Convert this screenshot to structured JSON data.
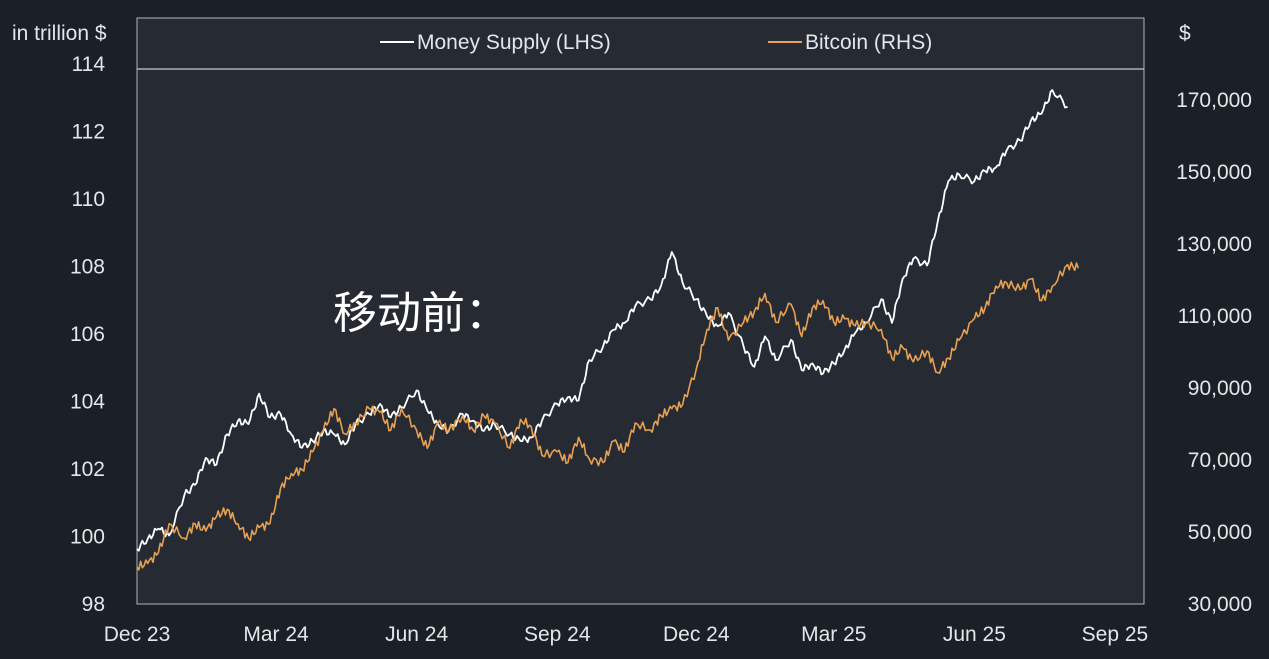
{
  "chart_data": {
    "type": "line",
    "left_axis": {
      "unit_label": "in trillion $",
      "ylim": [
        98,
        114
      ],
      "ticks": [
        "98",
        "100",
        "102",
        "104",
        "106",
        "108",
        "110",
        "112",
        "114"
      ]
    },
    "right_axis": {
      "unit_label": "$",
      "ylim": [
        30000,
        180000
      ],
      "ticks": [
        "30,000",
        "50,000",
        "70,000",
        "90,000",
        "110,000",
        "130,000",
        "150,000",
        "170,000"
      ]
    },
    "x_axis": {
      "xlim": [
        "2023-12-01",
        "2025-09-20"
      ],
      "ticks": [
        {
          "date": "2023-12-01",
          "label": "Dec 23"
        },
        {
          "date": "2024-03-01",
          "label": "Mar 24"
        },
        {
          "date": "2024-06-01",
          "label": "Jun 24"
        },
        {
          "date": "2024-09-01",
          "label": "Sep 24"
        },
        {
          "date": "2024-12-01",
          "label": "Dec 24"
        },
        {
          "date": "2025-03-01",
          "label": "Mar 25"
        },
        {
          "date": "2025-06-01",
          "label": "Jun 25"
        },
        {
          "date": "2025-09-01",
          "label": "Sep 25"
        }
      ]
    },
    "legend_position": "top",
    "grid": false,
    "annotation": "移动前：",
    "series": [
      {
        "name": "Money Supply (LHS)",
        "axis": "left",
        "color": "#ffffff",
        "points": [
          [
            "2023-12-01",
            99.6
          ],
          [
            "2023-12-08",
            99.9
          ],
          [
            "2023-12-15",
            100.2
          ],
          [
            "2023-12-22",
            100.0
          ],
          [
            "2024-01-01",
            101.2
          ],
          [
            "2024-01-08",
            101.5
          ],
          [
            "2024-01-15",
            102.3
          ],
          [
            "2024-01-22",
            102.1
          ],
          [
            "2024-01-29",
            103.0
          ],
          [
            "2024-02-05",
            103.4
          ],
          [
            "2024-02-12",
            103.3
          ],
          [
            "2024-02-19",
            104.2
          ],
          [
            "2024-02-26",
            103.5
          ],
          [
            "2024-03-04",
            103.6
          ],
          [
            "2024-03-11",
            103.0
          ],
          [
            "2024-03-18",
            102.6
          ],
          [
            "2024-03-25",
            102.8
          ],
          [
            "2024-04-01",
            103.1
          ],
          [
            "2024-04-08",
            103.0
          ],
          [
            "2024-04-15",
            102.7
          ],
          [
            "2024-04-22",
            103.3
          ],
          [
            "2024-05-01",
            103.6
          ],
          [
            "2024-05-08",
            103.9
          ],
          [
            "2024-05-15",
            103.5
          ],
          [
            "2024-05-22",
            103.8
          ],
          [
            "2024-06-01",
            104.3
          ],
          [
            "2024-06-08",
            103.7
          ],
          [
            "2024-06-15",
            103.3
          ],
          [
            "2024-06-22",
            103.1
          ],
          [
            "2024-07-01",
            103.6
          ],
          [
            "2024-07-08",
            103.4
          ],
          [
            "2024-07-15",
            103.1
          ],
          [
            "2024-07-22",
            103.3
          ],
          [
            "2024-08-01",
            103.0
          ],
          [
            "2024-08-08",
            102.8
          ],
          [
            "2024-08-15",
            102.9
          ],
          [
            "2024-08-22",
            103.4
          ],
          [
            "2024-09-01",
            103.9
          ],
          [
            "2024-09-08",
            104.1
          ],
          [
            "2024-09-15",
            104.0
          ],
          [
            "2024-09-22",
            105.2
          ],
          [
            "2024-10-01",
            105.6
          ],
          [
            "2024-10-08",
            106.1
          ],
          [
            "2024-10-15",
            106.3
          ],
          [
            "2024-10-22",
            106.8
          ],
          [
            "2024-11-01",
            107.0
          ],
          [
            "2024-11-08",
            107.4
          ],
          [
            "2024-11-15",
            108.4
          ],
          [
            "2024-11-22",
            107.5
          ],
          [
            "2024-12-01",
            107.0
          ],
          [
            "2024-12-08",
            106.5
          ],
          [
            "2024-12-15",
            106.2
          ],
          [
            "2024-12-22",
            106.6
          ],
          [
            "2025-01-01",
            105.6
          ],
          [
            "2025-01-08",
            105.0
          ],
          [
            "2025-01-15",
            105.9
          ],
          [
            "2025-01-22",
            105.2
          ],
          [
            "2025-02-01",
            105.8
          ],
          [
            "2025-02-08",
            104.9
          ],
          [
            "2025-02-15",
            105.1
          ],
          [
            "2025-02-22",
            104.8
          ],
          [
            "2025-03-01",
            105.1
          ],
          [
            "2025-03-08",
            105.5
          ],
          [
            "2025-03-15",
            106.0
          ],
          [
            "2025-03-22",
            106.3
          ],
          [
            "2025-04-01",
            107.0
          ],
          [
            "2025-04-08",
            106.3
          ],
          [
            "2025-04-15",
            107.6
          ],
          [
            "2025-04-22",
            108.2
          ],
          [
            "2025-05-01",
            108.0
          ],
          [
            "2025-05-08",
            109.3
          ],
          [
            "2025-05-15",
            110.5
          ],
          [
            "2025-05-22",
            110.7
          ],
          [
            "2025-06-01",
            110.5
          ],
          [
            "2025-06-08",
            110.8
          ],
          [
            "2025-06-15",
            110.9
          ],
          [
            "2025-06-22",
            111.4
          ],
          [
            "2025-07-01",
            111.7
          ],
          [
            "2025-07-08",
            112.3
          ],
          [
            "2025-07-15",
            112.5
          ],
          [
            "2025-07-22",
            113.2
          ],
          [
            "2025-08-01",
            112.7
          ]
        ]
      },
      {
        "name": "Bitcoin (RHS)",
        "axis": "right",
        "color": "#e8a052",
        "points": [
          [
            "2023-12-01",
            40000
          ],
          [
            "2023-12-08",
            41000
          ],
          [
            "2023-12-15",
            44000
          ],
          [
            "2023-12-22",
            52000
          ],
          [
            "2024-01-01",
            48000
          ],
          [
            "2024-01-08",
            52000
          ],
          [
            "2024-01-15",
            50000
          ],
          [
            "2024-01-22",
            54000
          ],
          [
            "2024-01-29",
            56000
          ],
          [
            "2024-02-05",
            52000
          ],
          [
            "2024-02-12",
            48000
          ],
          [
            "2024-02-19",
            51000
          ],
          [
            "2024-02-26",
            52000
          ],
          [
            "2024-03-04",
            62000
          ],
          [
            "2024-03-11",
            66000
          ],
          [
            "2024-03-18",
            67000
          ],
          [
            "2024-03-25",
            72000
          ],
          [
            "2024-04-01",
            78000
          ],
          [
            "2024-04-08",
            84000
          ],
          [
            "2024-04-15",
            77000
          ],
          [
            "2024-04-22",
            80000
          ],
          [
            "2024-05-01",
            84000
          ],
          [
            "2024-05-08",
            83000
          ],
          [
            "2024-05-15",
            78000
          ],
          [
            "2024-05-22",
            84000
          ],
          [
            "2024-06-01",
            78000
          ],
          [
            "2024-06-08",
            73000
          ],
          [
            "2024-06-15",
            80000
          ],
          [
            "2024-06-22",
            78000
          ],
          [
            "2024-07-01",
            82000
          ],
          [
            "2024-07-08",
            78000
          ],
          [
            "2024-07-15",
            82000
          ],
          [
            "2024-07-22",
            80000
          ],
          [
            "2024-08-01",
            73000
          ],
          [
            "2024-08-08",
            81000
          ],
          [
            "2024-08-15",
            79000
          ],
          [
            "2024-08-22",
            71000
          ],
          [
            "2024-09-01",
            72000
          ],
          [
            "2024-09-08",
            69000
          ],
          [
            "2024-09-15",
            76000
          ],
          [
            "2024-09-22",
            70000
          ],
          [
            "2024-10-01",
            69000
          ],
          [
            "2024-10-08",
            75000
          ],
          [
            "2024-10-15",
            72000
          ],
          [
            "2024-10-22",
            80000
          ],
          [
            "2024-11-01",
            78000
          ],
          [
            "2024-11-08",
            82000
          ],
          [
            "2024-11-15",
            84000
          ],
          [
            "2024-11-22",
            85000
          ],
          [
            "2024-12-01",
            95000
          ],
          [
            "2024-12-08",
            106000
          ],
          [
            "2024-12-15",
            112000
          ],
          [
            "2024-12-22",
            103000
          ],
          [
            "2025-01-01",
            108000
          ],
          [
            "2025-01-08",
            111000
          ],
          [
            "2025-01-15",
            116000
          ],
          [
            "2025-01-22",
            108000
          ],
          [
            "2025-02-01",
            113000
          ],
          [
            "2025-02-08",
            104000
          ],
          [
            "2025-02-15",
            112000
          ],
          [
            "2025-02-22",
            114000
          ],
          [
            "2025-03-01",
            108000
          ],
          [
            "2025-03-08",
            109000
          ],
          [
            "2025-03-15",
            107000
          ],
          [
            "2025-03-22",
            108000
          ],
          [
            "2025-04-01",
            106000
          ],
          [
            "2025-04-08",
            98000
          ],
          [
            "2025-04-15",
            101000
          ],
          [
            "2025-04-22",
            97000
          ],
          [
            "2025-05-01",
            100000
          ],
          [
            "2025-05-08",
            94000
          ],
          [
            "2025-05-15",
            98000
          ],
          [
            "2025-05-22",
            103000
          ],
          [
            "2025-06-01",
            109000
          ],
          [
            "2025-06-08",
            112000
          ],
          [
            "2025-06-15",
            118000
          ],
          [
            "2025-06-22",
            119000
          ],
          [
            "2025-07-01",
            117000
          ],
          [
            "2025-07-08",
            120000
          ],
          [
            "2025-07-15",
            114000
          ],
          [
            "2025-07-22",
            118000
          ],
          [
            "2025-08-01",
            124000
          ],
          [
            "2025-08-08",
            123000
          ]
        ]
      }
    ]
  }
}
